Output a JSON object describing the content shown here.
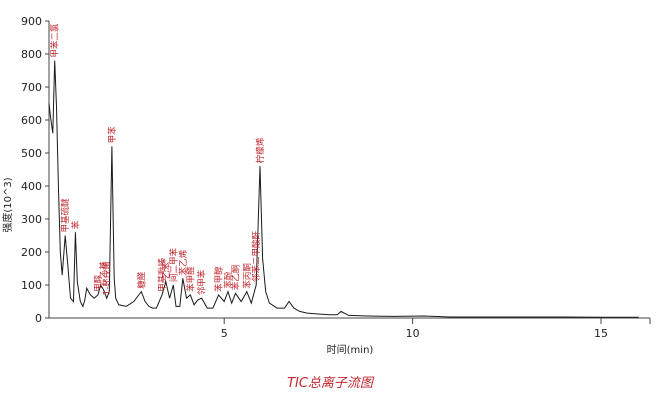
{
  "caption": "TIC总离子流图",
  "chart_data": {
    "type": "line",
    "title": "",
    "xlabel": "时间(min)",
    "ylabel": "强度(10^3)",
    "xlim": [
      0.35,
      16.3
    ],
    "ylim": [
      0,
      900
    ],
    "x_ticks": [
      5,
      10,
      15
    ],
    "y_ticks": [
      0,
      100,
      200,
      300,
      400,
      500,
      600,
      700,
      800,
      900
    ],
    "grid": false,
    "series": [
      {
        "x": [
          0.35,
          0.4,
          0.45,
          0.5,
          0.55,
          0.6,
          0.65,
          0.7,
          0.78,
          0.85,
          0.92,
          1.0,
          1.05,
          1.1,
          1.18,
          1.25,
          1.3,
          1.35,
          1.45,
          1.55,
          1.65,
          1.72,
          1.8,
          1.88,
          1.95,
          2.02,
          2.08,
          2.12,
          2.2,
          2.4,
          2.6,
          2.8,
          2.9,
          3.0,
          3.1,
          3.2,
          3.35,
          3.45,
          3.55,
          3.65,
          3.72,
          3.82,
          3.9,
          4.0,
          4.1,
          4.2,
          4.3,
          4.4,
          4.55,
          4.7,
          4.85,
          5.0,
          5.1,
          5.2,
          5.3,
          5.45,
          5.6,
          5.72,
          5.85,
          5.95,
          6.02,
          6.1,
          6.2,
          6.4,
          6.6,
          6.72,
          6.85,
          7.0,
          7.2,
          7.5,
          7.8,
          8.0,
          8.1,
          8.3,
          8.8,
          9.5,
          10.3,
          11.0,
          12.0,
          13.0,
          14.0,
          15.0,
          16.0
        ],
        "y": [
          650,
          600,
          560,
          780,
          640,
          400,
          200,
          130,
          250,
          160,
          60,
          50,
          260,
          110,
          50,
          35,
          55,
          90,
          70,
          60,
          70,
          100,
          85,
          60,
          80,
          520,
          120,
          60,
          40,
          35,
          50,
          80,
          50,
          35,
          30,
          30,
          70,
          110,
          60,
          100,
          35,
          35,
          120,
          60,
          70,
          40,
          55,
          60,
          30,
          30,
          70,
          50,
          80,
          45,
          75,
          50,
          80,
          45,
          100,
          460,
          180,
          80,
          45,
          30,
          30,
          50,
          30,
          20,
          15,
          12,
          10,
          10,
          20,
          8,
          6,
          5,
          6,
          3,
          3,
          3,
          3,
          2,
          2
        ]
      }
    ],
    "peak_labels": [
      {
        "x": 0.5,
        "y": 780,
        "text": "甲苯二氯"
      },
      {
        "x": 0.78,
        "y": 250,
        "text": "甲基硫醚"
      },
      {
        "x": 1.05,
        "y": 260,
        "text": "苯"
      },
      {
        "x": 1.65,
        "y": 70,
        "text": "甲醇"
      },
      {
        "x": 1.8,
        "y": 85,
        "text": "1-乙基"
      },
      {
        "x": 1.88,
        "y": 60,
        "text": "1-环戊烯"
      },
      {
        "x": 2.02,
        "y": 520,
        "text": "甲苯"
      },
      {
        "x": 2.8,
        "y": 80,
        "text": "糠醛"
      },
      {
        "x": 3.35,
        "y": 70,
        "text": "甲基吡嗪"
      },
      {
        "x": 3.45,
        "y": 110,
        "text": "乙苯"
      },
      {
        "x": 3.65,
        "y": 100,
        "text": "间二甲苯"
      },
      {
        "x": 3.9,
        "y": 120,
        "text": "苯乙烯"
      },
      {
        "x": 4.1,
        "y": 70,
        "text": "苯甲醛"
      },
      {
        "x": 4.4,
        "y": 60,
        "text": "邻甲苯"
      },
      {
        "x": 4.85,
        "y": 70,
        "text": "苯甲醇"
      },
      {
        "x": 5.1,
        "y": 80,
        "text": "苯酚"
      },
      {
        "x": 5.3,
        "y": 75,
        "text": "苯乙酮"
      },
      {
        "x": 5.6,
        "y": 80,
        "text": "苯丙酮"
      },
      {
        "x": 5.85,
        "y": 100,
        "text": "邻苯二甲酸酐"
      },
      {
        "x": 5.95,
        "y": 460,
        "text": "柠檬烯"
      }
    ]
  }
}
